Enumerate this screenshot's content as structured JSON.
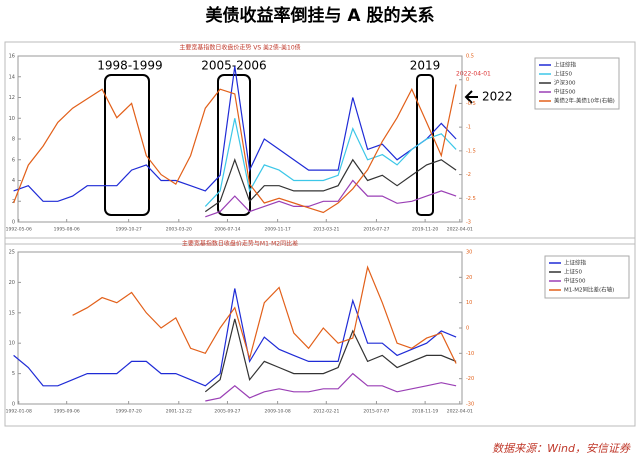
{
  "title": "美债收益率倒挂与 A 股的关系",
  "source": "数据来源：Wind，安信证券",
  "annotations": [
    "1998-1999",
    "2005-2006",
    "2019",
    "2022",
    "2022-04-01"
  ],
  "chart_data": [
    {
      "type": "line",
      "title": "主要宽基指数日收盘价走势 VS 美2债-美10债",
      "xlim": [
        1992.3,
        2022.4
      ],
      "xticks": [
        {
          "value": 1992.35,
          "label": "1992-05-06"
        },
        {
          "value": 1995.6,
          "label": "1995-08-06"
        },
        {
          "value": 1999.8,
          "label": "1999-10-27"
        },
        {
          "value": 2003.2,
          "label": "2003-03-20"
        },
        {
          "value": 2006.5,
          "label": "2006-07-14"
        },
        {
          "value": 2009.9,
          "label": "2009-11-17"
        },
        {
          "value": 2013.2,
          "label": "2013-03-21"
        },
        {
          "value": 2016.6,
          "label": "2016-07-27"
        },
        {
          "value": 2019.9,
          "label": "2019-11-20"
        },
        {
          "value": 2022.25,
          "label": "2022-04-01"
        }
      ],
      "ylim": [
        0,
        16
      ],
      "yticks": [
        0,
        2,
        4,
        6,
        8,
        10,
        12,
        14,
        16
      ],
      "y2lim": [
        -3,
        0.5
      ],
      "y2ticks": [
        -3,
        -2.5,
        -2,
        -1.5,
        -1,
        -0.5,
        0,
        0.5
      ],
      "x": [
        1992,
        1993,
        1994,
        1995,
        1996,
        1997,
        1998,
        1999,
        2000,
        2001,
        2002,
        2003,
        2004,
        2005,
        2006,
        2007,
        2008,
        2009,
        2010,
        2011,
        2012,
        2013,
        2014,
        2015,
        2016,
        2017,
        2018,
        2019,
        2020,
        2021,
        2022
      ],
      "series": [
        {
          "name": "上证综指",
          "color": "#1f2bd6",
          "values": [
            3,
            3.5,
            2,
            2,
            2.5,
            3.5,
            3.5,
            3.5,
            5,
            5.5,
            4,
            4,
            3.5,
            3,
            4.5,
            15,
            5,
            8,
            7,
            6,
            5,
            5,
            5,
            12,
            7,
            7.5,
            6,
            7,
            8,
            9.5,
            8
          ]
        },
        {
          "name": "上证50",
          "color": "#3cc7e8",
          "values": [
            null,
            null,
            null,
            null,
            null,
            null,
            null,
            null,
            null,
            null,
            null,
            null,
            null,
            1.5,
            3,
            10,
            3,
            5.5,
            5,
            4,
            4,
            4,
            4.5,
            9,
            6,
            6.5,
            5.5,
            7,
            8,
            8.5,
            7
          ]
        },
        {
          "name": "沪深300",
          "color": "#333333",
          "values": [
            null,
            null,
            null,
            null,
            null,
            null,
            null,
            null,
            null,
            null,
            null,
            null,
            null,
            1,
            2,
            6,
            2,
            3.5,
            3.5,
            3,
            3,
            3,
            3.5,
            6,
            4,
            4.5,
            3.5,
            4.5,
            5.5,
            6,
            5
          ]
        },
        {
          "name": "中证500",
          "color": "#9a3fb5",
          "values": [
            null,
            null,
            null,
            null,
            null,
            null,
            null,
            null,
            null,
            null,
            null,
            null,
            null,
            0.5,
            1,
            2.5,
            1,
            1.5,
            2,
            1.5,
            1.5,
            2,
            2,
            4,
            2.5,
            2.5,
            1.8,
            2,
            2.5,
            3,
            2.5
          ]
        },
        {
          "name": "美债2年-美债10年(右轴)",
          "color": "#e2601a",
          "axis": "y2",
          "values": [
            -2.6,
            -1.8,
            -1.4,
            -0.9,
            -0.6,
            -0.4,
            -0.2,
            -0.8,
            -0.5,
            -1.6,
            -2,
            -2.2,
            -1.6,
            -0.6,
            -0.2,
            -0.3,
            -2.2,
            -2.6,
            -2.5,
            -2.6,
            -2.7,
            -2.8,
            -2.6,
            -2.3,
            -1.9,
            -1.3,
            -0.8,
            -0.2,
            -0.9,
            -1.6,
            -0.1
          ]
        }
      ]
    },
    {
      "type": "line",
      "title": "主要宽基指数日收盘价走势与M1-M2同比差",
      "xlim": [
        1992.3,
        2022.4
      ],
      "xticks": [
        {
          "value": 1992.35,
          "label": "1992-01-08"
        },
        {
          "value": 1995.6,
          "label": "1995-09-06"
        },
        {
          "value": 1999.8,
          "label": "1999-07-20"
        },
        {
          "value": 2003.2,
          "label": "2001-12-22"
        },
        {
          "value": 2006.5,
          "label": "2005-09-27"
        },
        {
          "value": 2009.9,
          "label": "2009-10-08"
        },
        {
          "value": 2013.2,
          "label": "2012-02-21"
        },
        {
          "value": 2016.6,
          "label": "2015-07-07"
        },
        {
          "value": 2019.9,
          "label": "2018-11-19"
        },
        {
          "value": 2022.25,
          "label": "2022-04-01"
        }
      ],
      "ylim": [
        0,
        25
      ],
      "yticks": [
        0,
        5,
        10,
        15,
        20,
        25
      ],
      "y2lim": [
        -30,
        30
      ],
      "y2ticks": [
        -30,
        -20,
        -10,
        0,
        10,
        20,
        30
      ],
      "x": [
        1992,
        1993,
        1994,
        1995,
        1996,
        1997,
        1998,
        1999,
        2000,
        2001,
        2002,
        2003,
        2004,
        2005,
        2006,
        2007,
        2008,
        2009,
        2010,
        2011,
        2012,
        2013,
        2014,
        2015,
        2016,
        2017,
        2018,
        2019,
        2020,
        2021,
        2022
      ],
      "series": [
        {
          "name": "上证综指",
          "color": "#1f2bd6",
          "values": [
            8,
            6,
            3,
            3,
            4,
            5,
            5,
            5,
            7,
            7,
            5,
            5,
            4,
            3,
            5,
            19,
            7,
            11,
            9,
            8,
            7,
            7,
            7,
            17,
            10,
            10,
            8,
            9,
            10,
            12,
            11
          ]
        },
        {
          "name": "上证50",
          "color": "#333333",
          "values": [
            null,
            null,
            null,
            null,
            null,
            null,
            null,
            null,
            null,
            null,
            null,
            null,
            null,
            2,
            4,
            14,
            4,
            7,
            6,
            5,
            5,
            5,
            6,
            12,
            7,
            8,
            6,
            7,
            8,
            8,
            7
          ]
        },
        {
          "name": "中证500",
          "color": "#9a3fb5",
          "values": [
            null,
            null,
            null,
            null,
            null,
            null,
            null,
            null,
            null,
            null,
            null,
            null,
            null,
            0.5,
            1,
            3,
            1,
            2,
            2.5,
            2,
            2,
            2.5,
            2.5,
            5,
            3,
            3,
            2,
            2.5,
            3,
            3.5,
            3
          ]
        },
        {
          "name": "M1-M2同比差(右轴)",
          "color": "#e2601a",
          "axis": "y2",
          "values": [
            null,
            null,
            null,
            null,
            5,
            8,
            12,
            10,
            14,
            6,
            0,
            4,
            -8,
            -10,
            0,
            8,
            -12,
            10,
            16,
            -2,
            -8,
            0,
            -6,
            -4,
            24,
            10,
            -6,
            -8,
            -4,
            -2,
            -14
          ]
        }
      ]
    }
  ]
}
